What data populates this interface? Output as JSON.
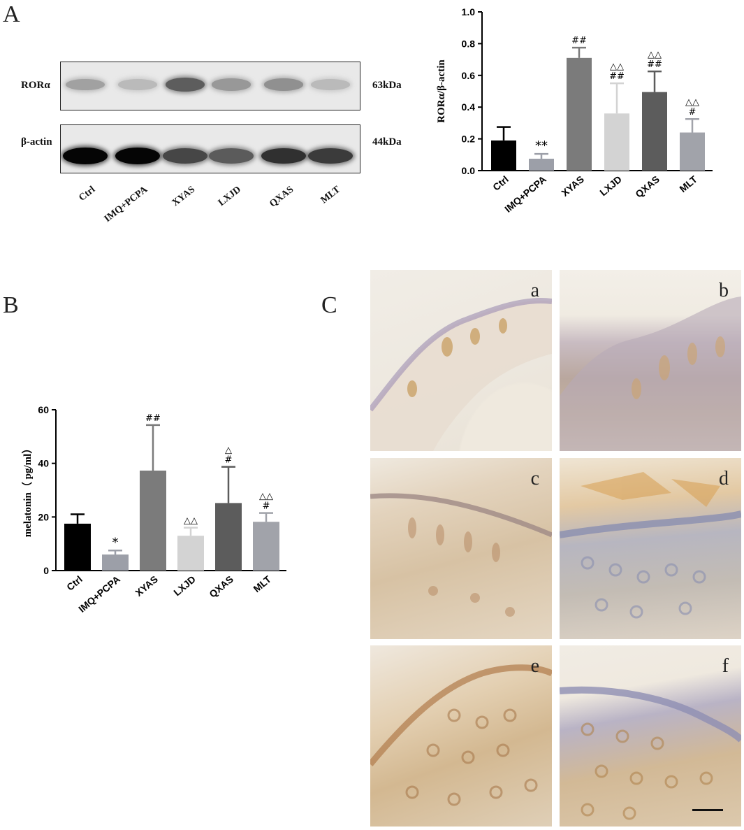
{
  "panels": {
    "A": "A",
    "B": "B",
    "C": "C"
  },
  "blot": {
    "lanes": [
      "Ctrl",
      "IMQ+PCPA",
      "XYAS",
      "LXJD",
      "QXAS",
      "MLT"
    ],
    "rows": [
      {
        "protein": "RORα",
        "mw": "63kDa",
        "band_intensity": [
          0.35,
          0.2,
          0.75,
          0.4,
          0.45,
          0.2
        ]
      },
      {
        "protein": "β-actin",
        "mw": "44kDa",
        "band_intensity": [
          1.0,
          1.0,
          0.7,
          0.6,
          0.8,
          0.75
        ]
      }
    ]
  },
  "chart_data": [
    {
      "type": "bar",
      "panel": "A",
      "categories": [
        "Ctrl",
        "IMQ+PCPA",
        "XYAS",
        "LXJD",
        "QXAS",
        "MLT"
      ],
      "values": [
        0.19,
        0.075,
        0.71,
        0.36,
        0.495,
        0.24
      ],
      "errors": [
        0.085,
        0.03,
        0.065,
        0.19,
        0.13,
        0.085
      ],
      "annotations": [
        "",
        "**",
        "##",
        "△△\n##",
        "△△\n##",
        "△△\n#"
      ],
      "colors": [
        "#000000",
        "#9c9fa8",
        "#7b7b7b",
        "#d3d3d3",
        "#5c5c5c",
        "#a1a3aa"
      ],
      "ylabel": "RORα/β-actin",
      "xlabel": "",
      "ylim": [
        0,
        1.0
      ],
      "yticks": [
        "0.0",
        "0.2",
        "0.4",
        "0.6",
        "0.8",
        "1.0"
      ],
      "grid": false
    },
    {
      "type": "bar",
      "panel": "B",
      "categories": [
        "Ctrl",
        "IMQ+PCPA",
        "XYAS",
        "LXJD",
        "QXAS",
        "MLT"
      ],
      "values": [
        17.5,
        6.0,
        37.3,
        13.0,
        25.2,
        18.2
      ],
      "errors": [
        3.5,
        1.5,
        17.0,
        3.0,
        13.5,
        3.3
      ],
      "annotations": [
        "",
        "*",
        "##",
        "△△",
        "△\n#",
        "△△\n#"
      ],
      "colors": [
        "#000000",
        "#9c9fa8",
        "#7b7b7b",
        "#d3d3d3",
        "#5c5c5c",
        "#a1a3aa"
      ],
      "ylabel": "melatonin（ pg/ml）",
      "xlabel": "",
      "ylim": [
        0,
        60
      ],
      "yticks": [
        "0",
        "20",
        "40",
        "60"
      ],
      "grid": false
    }
  ],
  "micrographs": [
    "a",
    "b",
    "c",
    "d",
    "e",
    "f"
  ]
}
